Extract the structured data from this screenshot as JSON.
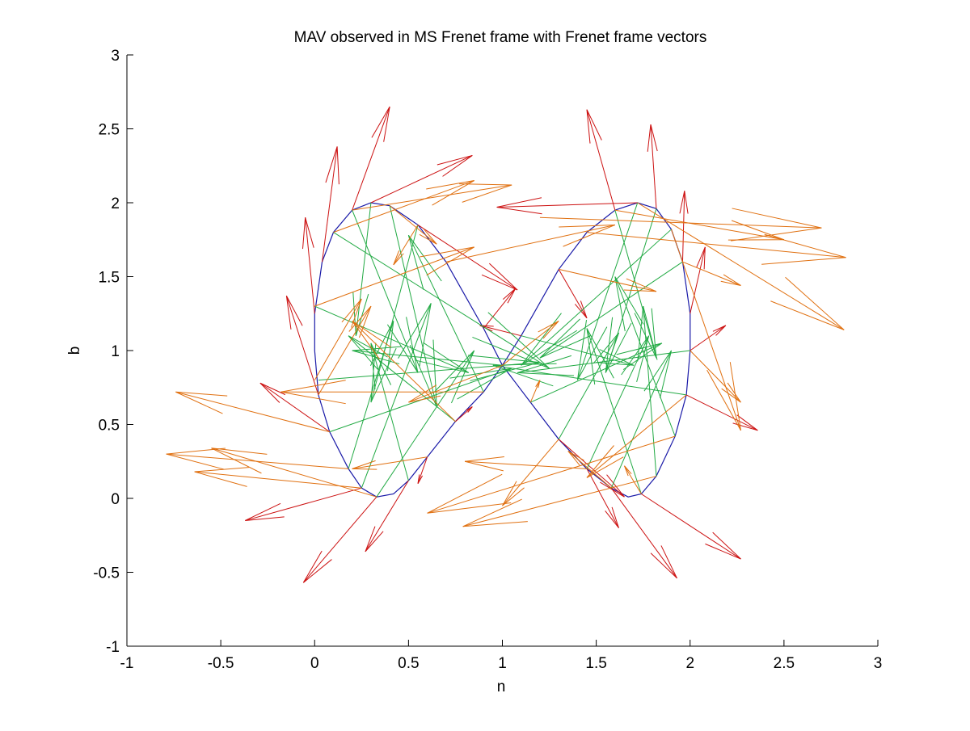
{
  "figure": {
    "title": "MAV observed in MS Frenet frame with Frenet frame vectors"
  },
  "chart_data": {
    "type": "line",
    "title": "MAV observed in MS Frenet frame with Frenet frame vectors",
    "xlabel": "n",
    "ylabel": "b",
    "xlim": [
      -1,
      3
    ],
    "ylim": [
      -1,
      3
    ],
    "xticks": [
      -1,
      -0.5,
      0,
      0.5,
      1,
      1.5,
      2,
      2.5,
      3
    ],
    "xtick_labels": [
      "-1",
      "-0.5",
      "0",
      "0.5",
      "1",
      "1.5",
      "2",
      "2.5",
      "3"
    ],
    "yticks": [
      -1,
      -0.5,
      0,
      0.5,
      1,
      1.5,
      2,
      2.5,
      3
    ],
    "ytick_labels": [
      "-1",
      "-0.5",
      "0",
      "0.5",
      "1",
      "1.5",
      "2",
      "2.5",
      "3"
    ],
    "grid": false,
    "legend": "none",
    "colors": {
      "path": "#1a1aa8",
      "tangent": "#cc1111",
      "normal": "#22aa44",
      "binormal": "#e07010"
    },
    "series": [
      {
        "kind": "path",
        "color": "#1a1aa8",
        "points": [
          [
            1.0,
            0.9
          ],
          [
            0.9,
            1.15
          ],
          [
            0.7,
            1.6
          ],
          [
            0.55,
            1.85
          ],
          [
            0.4,
            1.98
          ],
          [
            0.3,
            2.0
          ],
          [
            0.2,
            1.95
          ],
          [
            0.1,
            1.8
          ],
          [
            0.04,
            1.6
          ],
          [
            0.0,
            1.25
          ],
          [
            0.0,
            1.0
          ],
          [
            0.02,
            0.7
          ],
          [
            0.08,
            0.45
          ],
          [
            0.18,
            0.2
          ],
          [
            0.25,
            0.07
          ],
          [
            0.33,
            0.01
          ],
          [
            0.42,
            0.03
          ],
          [
            0.5,
            0.12
          ],
          [
            0.6,
            0.28
          ],
          [
            0.75,
            0.52
          ],
          [
            0.9,
            0.72
          ],
          [
            1.0,
            0.9
          ],
          [
            1.1,
            1.1
          ],
          [
            1.3,
            1.55
          ],
          [
            1.45,
            1.8
          ],
          [
            1.6,
            1.95
          ],
          [
            1.72,
            2.0
          ],
          [
            1.82,
            1.96
          ],
          [
            1.9,
            1.82
          ],
          [
            1.96,
            1.6
          ],
          [
            2.0,
            1.25
          ],
          [
            2.0,
            1.0
          ],
          [
            1.98,
            0.7
          ],
          [
            1.92,
            0.42
          ],
          [
            1.82,
            0.15
          ],
          [
            1.74,
            0.03
          ],
          [
            1.67,
            0.01
          ],
          [
            1.58,
            0.07
          ],
          [
            1.45,
            0.2
          ],
          [
            1.3,
            0.4
          ],
          [
            1.15,
            0.65
          ],
          [
            1.0,
            0.9
          ]
        ]
      },
      {
        "kind": "tangent",
        "color": "#cc1111",
        "segments": [
          [
            0.0,
            1.25,
            -0.05,
            1.9
          ],
          [
            0.04,
            1.6,
            0.12,
            2.38
          ],
          [
            0.2,
            1.95,
            0.4,
            2.65
          ],
          [
            0.3,
            2.0,
            0.84,
            2.32
          ],
          [
            0.55,
            1.85,
            1.08,
            1.41
          ],
          [
            0.9,
            1.15,
            1.07,
            1.42
          ],
          [
            1.1,
            1.1,
            0.88,
            1.17
          ],
          [
            1.3,
            1.55,
            1.45,
            1.22
          ],
          [
            0.02,
            0.7,
            -0.15,
            1.37
          ],
          [
            0.08,
            0.45,
            -0.29,
            0.78
          ],
          [
            0.25,
            0.07,
            -0.37,
            -0.15
          ],
          [
            0.33,
            0.01,
            -0.06,
            -0.57
          ],
          [
            0.5,
            0.12,
            0.27,
            -0.36
          ],
          [
            0.6,
            0.28,
            0.55,
            0.1
          ],
          [
            0.75,
            0.52,
            0.84,
            0.62
          ],
          [
            1.6,
            1.95,
            1.45,
            2.63
          ],
          [
            1.72,
            2.0,
            0.97,
            1.97
          ],
          [
            1.82,
            1.96,
            1.79,
            2.53
          ],
          [
            1.96,
            1.6,
            1.97,
            2.08
          ],
          [
            2.0,
            1.25,
            2.08,
            1.7
          ],
          [
            2.0,
            1.0,
            2.19,
            1.17
          ],
          [
            1.98,
            0.7,
            2.36,
            0.46
          ],
          [
            1.74,
            0.03,
            2.27,
            -0.41
          ],
          [
            1.58,
            0.07,
            1.93,
            -0.54
          ],
          [
            1.45,
            0.2,
            1.62,
            -0.2
          ],
          [
            1.3,
            0.4,
            1.65,
            0.01
          ]
        ]
      },
      {
        "kind": "normal",
        "color": "#22aa44",
        "segments": [
          [
            0.0,
            1.3,
            0.82,
            0.85
          ],
          [
            0.02,
            0.8,
            1.2,
            0.92
          ],
          [
            0.08,
            0.45,
            1.05,
            0.88
          ],
          [
            0.18,
            0.2,
            0.42,
            1.2
          ],
          [
            0.25,
            0.07,
            0.62,
            1.32
          ],
          [
            0.4,
            1.98,
            0.65,
            0.62
          ],
          [
            0.3,
            2.0,
            0.22,
            1.1
          ],
          [
            0.55,
            1.85,
            0.3,
            0.65
          ],
          [
            0.1,
            1.8,
            1.25,
            0.88
          ],
          [
            0.2,
            1.95,
            0.55,
            0.85
          ],
          [
            0.5,
            0.12,
            0.3,
            1.05
          ],
          [
            0.75,
            0.52,
            0.18,
            1.1
          ],
          [
            0.9,
            0.72,
            0.5,
            1.78
          ],
          [
            1.0,
            0.9,
            0.2,
            1.0
          ],
          [
            0.33,
            0.01,
            0.85,
            1.0
          ],
          [
            2.0,
            1.0,
            1.08,
            0.85
          ],
          [
            1.98,
            0.7,
            0.95,
            0.9
          ],
          [
            1.92,
            0.42,
            1.6,
            1.5
          ],
          [
            1.82,
            0.15,
            1.75,
            1.3
          ],
          [
            1.74,
            0.03,
            1.45,
            1.15
          ],
          [
            1.6,
            1.95,
            1.82,
            0.95
          ],
          [
            1.72,
            2.0,
            1.4,
            0.8
          ],
          [
            1.82,
            1.96,
            1.55,
            0.85
          ],
          [
            1.9,
            1.82,
            1.1,
            0.9
          ],
          [
            1.96,
            1.6,
            1.2,
            0.95
          ],
          [
            1.45,
            0.2,
            1.78,
            1.1
          ],
          [
            1.3,
            0.4,
            1.62,
            1.12
          ],
          [
            1.58,
            0.07,
            1.9,
            1.0
          ],
          [
            1.15,
            0.65,
            1.85,
            1.05
          ],
          [
            1.1,
            1.1,
            1.7,
            0.9
          ]
        ]
      },
      {
        "kind": "binormal",
        "color": "#e07010",
        "segments": [
          [
            0.0,
            1.3,
            0.85,
            1.7
          ],
          [
            0.0,
            0.8,
            0.25,
            1.35
          ],
          [
            0.02,
            0.7,
            0.3,
            1.3
          ],
          [
            0.08,
            0.45,
            -0.74,
            0.72
          ],
          [
            0.18,
            0.2,
            -0.79,
            0.3
          ],
          [
            0.25,
            0.07,
            -0.64,
            0.18
          ],
          [
            0.33,
            0.01,
            -0.55,
            0.34
          ],
          [
            0.1,
            1.8,
            0.85,
            2.15
          ],
          [
            0.2,
            1.95,
            1.05,
            2.12
          ],
          [
            0.4,
            1.98,
            0.65,
            1.72
          ],
          [
            0.55,
            1.85,
            0.42,
            1.58
          ],
          [
            0.75,
            0.52,
            0.2,
            1.2
          ],
          [
            0.9,
            0.72,
            -0.18,
            0.72
          ],
          [
            1.0,
            0.9,
            0.5,
            0.65
          ],
          [
            0.6,
            0.28,
            0.2,
            0.2
          ],
          [
            0.7,
            1.6,
            1.6,
            1.85
          ],
          [
            1.3,
            1.55,
            1.82,
            1.4
          ],
          [
            1.2,
            1.9,
            2.7,
            1.83
          ],
          [
            1.45,
            1.8,
            2.83,
            1.63
          ],
          [
            1.6,
            1.95,
            2.5,
            1.75
          ],
          [
            1.72,
            2.0,
            2.82,
            1.14
          ],
          [
            1.9,
            1.82,
            2.27,
            0.46
          ],
          [
            1.96,
            1.6,
            2.27,
            1.44
          ],
          [
            2.0,
            1.0,
            2.27,
            0.65
          ],
          [
            1.98,
            0.7,
            1.45,
            0.14
          ],
          [
            1.92,
            0.42,
            0.6,
            -0.1
          ],
          [
            1.82,
            0.15,
            0.79,
            -0.19
          ],
          [
            1.74,
            0.03,
            1.65,
            0.22
          ],
          [
            1.58,
            0.07,
            1.35,
            0.32
          ],
          [
            1.45,
            0.2,
            0.8,
            0.25
          ],
          [
            1.3,
            0.4,
            1.0,
            -0.05
          ],
          [
            1.15,
            0.65,
            1.2,
            0.8
          ],
          [
            1.0,
            0.9,
            1.3,
            1.2
          ]
        ]
      }
    ]
  }
}
